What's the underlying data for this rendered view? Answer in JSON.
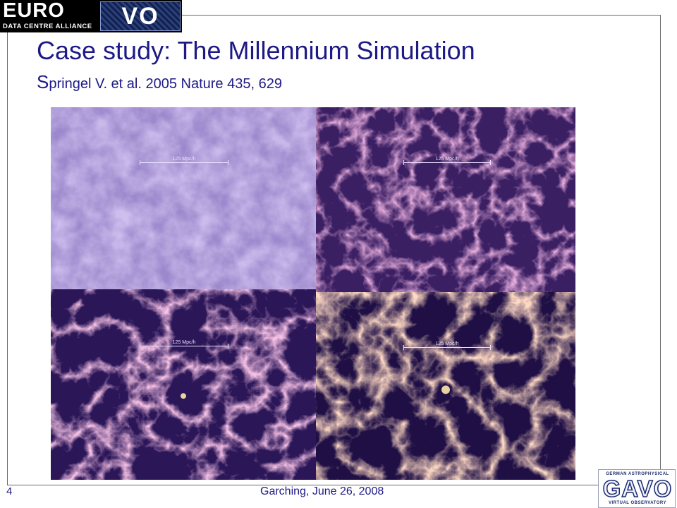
{
  "logo": {
    "word": "EURO",
    "vo": "VO",
    "subtitle": "DATA CENTRE ALLIANCE"
  },
  "slide": {
    "title": "Case study: The Millennium Simulation",
    "subtitle_initial": "S",
    "subtitle_rest": "pringel V. et al. 2005 Nature 435, 629",
    "scale_label": "125 Mpc/h"
  },
  "footer": {
    "page_number": "4",
    "text": "Garching, June 26, 2008"
  },
  "gavo": {
    "top": "GERMAN ASTROPHYSICAL",
    "main": "GAVO",
    "bottom": "VIRTUAL OBSERVATORY"
  },
  "colors": {
    "title": "#1d1a86",
    "panel_early": "#8f7ac4",
    "panel_late": "#2a1550",
    "filament": "#ffd36b"
  }
}
